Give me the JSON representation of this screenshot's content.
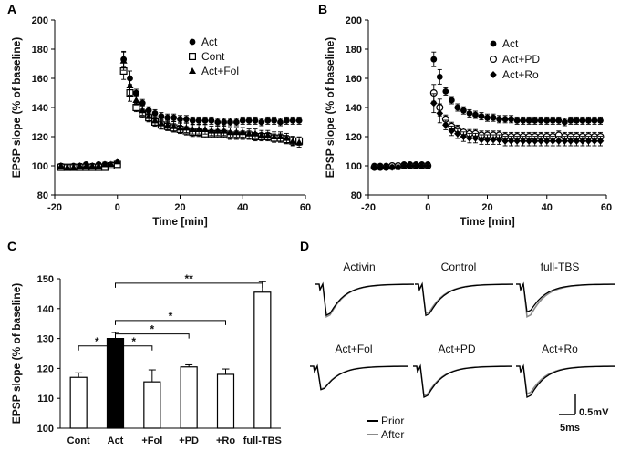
{
  "chart_data": [
    {
      "panel": "A",
      "type": "scatter",
      "xlabel": "Time [min]",
      "ylabel": "EPSP slope (% of baseline)",
      "xlim": [
        -20,
        60
      ],
      "ylim": [
        80,
        200
      ],
      "xticks": [
        -20,
        0,
        20,
        40,
        60
      ],
      "yticks": [
        80,
        100,
        120,
        140,
        160,
        180,
        200
      ],
      "legend_position": "top-right",
      "series": [
        {
          "name": "Act",
          "marker": "circle-filled",
          "x": [
            -18,
            -16,
            -14,
            -12,
            -10,
            -8,
            -6,
            -4,
            -2,
            0,
            2,
            4,
            6,
            8,
            10,
            12,
            14,
            16,
            18,
            20,
            22,
            24,
            26,
            28,
            30,
            32,
            34,
            36,
            38,
            40,
            42,
            44,
            46,
            48,
            50,
            52,
            54,
            56,
            58
          ],
          "y": [
            100,
            99,
            100,
            100,
            101,
            100,
            101,
            101,
            100,
            102,
            173,
            160,
            150,
            143,
            138,
            136,
            134,
            133,
            133,
            132,
            132,
            131,
            131,
            131,
            131,
            130,
            130,
            130,
            130,
            131,
            131,
            131,
            130,
            131,
            131,
            130,
            131,
            131,
            131
          ]
        },
        {
          "name": "Cont",
          "marker": "square-open",
          "x": [
            -18,
            -16,
            -14,
            -12,
            -10,
            -8,
            -6,
            -4,
            -2,
            0,
            2,
            4,
            6,
            8,
            10,
            12,
            14,
            16,
            18,
            20,
            22,
            24,
            26,
            28,
            30,
            32,
            34,
            36,
            38,
            40,
            42,
            44,
            46,
            48,
            50,
            52,
            54,
            56,
            58
          ],
          "y": [
            99,
            99,
            99,
            99,
            99,
            99,
            99,
            99,
            100,
            101,
            165,
            150,
            140,
            136,
            133,
            130,
            128,
            127,
            126,
            125,
            124,
            123,
            123,
            122,
            122,
            122,
            122,
            121,
            121,
            121,
            121,
            120,
            120,
            120,
            119,
            119,
            118,
            117,
            117
          ]
        },
        {
          "name": "Act+Fol",
          "marker": "triangle-filled",
          "x": [
            -18,
            -16,
            -14,
            -12,
            -10,
            -8,
            -6,
            -4,
            -2,
            0,
            2,
            4,
            6,
            8,
            10,
            12,
            14,
            16,
            18,
            20,
            22,
            24,
            26,
            28,
            30,
            32,
            34,
            36,
            38,
            40,
            42,
            44,
            46,
            48,
            50,
            52,
            54,
            56,
            58
          ],
          "y": [
            100,
            99,
            99,
            100,
            100,
            100,
            100,
            101,
            101,
            103,
            172,
            155,
            145,
            138,
            134,
            131,
            129,
            128,
            127,
            126,
            126,
            125,
            125,
            125,
            124,
            124,
            124,
            123,
            123,
            123,
            122,
            122,
            121,
            121,
            120,
            120,
            119,
            117,
            116
          ]
        }
      ]
    },
    {
      "panel": "B",
      "type": "scatter",
      "xlabel": "Time [min]",
      "ylabel": "EPSP slope (% of baseline)",
      "xlim": [
        -20,
        60
      ],
      "ylim": [
        80,
        200
      ],
      "xticks": [
        -20,
        0,
        20,
        40,
        60
      ],
      "yticks": [
        80,
        100,
        120,
        140,
        160,
        180,
        200
      ],
      "legend_position": "top-right",
      "series": [
        {
          "name": "Act",
          "marker": "circle-filled",
          "x": [
            -18,
            -16,
            -14,
            -12,
            -10,
            -8,
            -6,
            -4,
            -2,
            0,
            2,
            4,
            6,
            8,
            10,
            12,
            14,
            16,
            18,
            20,
            22,
            24,
            26,
            28,
            30,
            32,
            34,
            36,
            38,
            40,
            42,
            44,
            46,
            48,
            50,
            52,
            54,
            56,
            58
          ],
          "y": [
            100,
            100,
            100,
            100,
            100,
            101,
            101,
            101,
            101,
            101,
            173,
            161,
            151,
            145,
            140,
            138,
            136,
            135,
            134,
            133,
            133,
            132,
            132,
            132,
            131,
            131,
            131,
            131,
            131,
            131,
            131,
            131,
            130,
            131,
            131,
            131,
            131,
            131,
            131
          ]
        },
        {
          "name": "Act+PD",
          "marker": "circle-open",
          "x": [
            -18,
            -16,
            -14,
            -12,
            -10,
            -8,
            -6,
            -4,
            -2,
            0,
            2,
            4,
            6,
            8,
            10,
            12,
            14,
            16,
            18,
            20,
            22,
            24,
            26,
            28,
            30,
            32,
            34,
            36,
            38,
            40,
            42,
            44,
            46,
            48,
            50,
            52,
            54,
            56,
            58
          ],
          "y": [
            99,
            99,
            99,
            100,
            100,
            100,
            100,
            100,
            100,
            100,
            150,
            140,
            132,
            127,
            125,
            123,
            122,
            122,
            121,
            121,
            121,
            121,
            120,
            120,
            120,
            120,
            120,
            120,
            120,
            120,
            120,
            121,
            120,
            120,
            120,
            120,
            120,
            120,
            120
          ]
        },
        {
          "name": "Act+Ro",
          "marker": "diamond-filled",
          "x": [
            -18,
            -16,
            -14,
            -12,
            -10,
            -8,
            -6,
            -4,
            -2,
            0,
            2,
            4,
            6,
            8,
            10,
            12,
            14,
            16,
            18,
            20,
            22,
            24,
            26,
            28,
            30,
            32,
            34,
            36,
            38,
            40,
            42,
            44,
            46,
            48,
            50,
            52,
            54,
            56,
            58
          ],
          "y": [
            99,
            99,
            99,
            99,
            99,
            100,
            100,
            100,
            100,
            100,
            143,
            136,
            128,
            124,
            122,
            120,
            119,
            119,
            118,
            118,
            118,
            118,
            117,
            117,
            117,
            117,
            117,
            117,
            117,
            117,
            117,
            117,
            117,
            117,
            117,
            117,
            117,
            117,
            117
          ]
        }
      ]
    },
    {
      "panel": "C",
      "type": "bar",
      "ylabel": "EPSP slope (% of baseline)",
      "ylim": [
        100,
        150
      ],
      "yticks": [
        100,
        110,
        120,
        130,
        140,
        150
      ],
      "categories": [
        "Cont",
        "Act",
        "+Fol",
        "+PD",
        "+Ro",
        "full-TBS"
      ],
      "values": [
        117,
        130,
        115.5,
        120.5,
        118,
        145.5
      ],
      "errors": [
        1.5,
        2,
        4,
        0.7,
        1.8,
        3.5
      ],
      "fills": [
        "#ffffff",
        "#000000",
        "#ffffff",
        "#ffffff",
        "#ffffff",
        "#ffffff"
      ],
      "significance": [
        {
          "from": 0,
          "to": 1,
          "label": "*"
        },
        {
          "from": 1,
          "to": 2,
          "label": "*"
        },
        {
          "from": 1,
          "to": 3,
          "label": "*"
        },
        {
          "from": 1,
          "to": 4,
          "label": "*"
        },
        {
          "from": 1,
          "to": 5,
          "label": "**"
        }
      ]
    },
    {
      "panel": "D",
      "type": "line",
      "traces": [
        "Activin",
        "Control",
        "full-TBS",
        "Act+Fol",
        "Act+PD",
        "Act+Ro"
      ],
      "legend": [
        {
          "name": "Prior",
          "color": "#000000"
        },
        {
          "name": "After",
          "color": "#8a8a8a"
        }
      ],
      "scale_bar": {
        "amplitude": "0.5mV",
        "time": "5ms"
      }
    }
  ],
  "panels": {
    "a_label": "A",
    "b_label": "B",
    "c_label": "C",
    "d_label": "D"
  }
}
